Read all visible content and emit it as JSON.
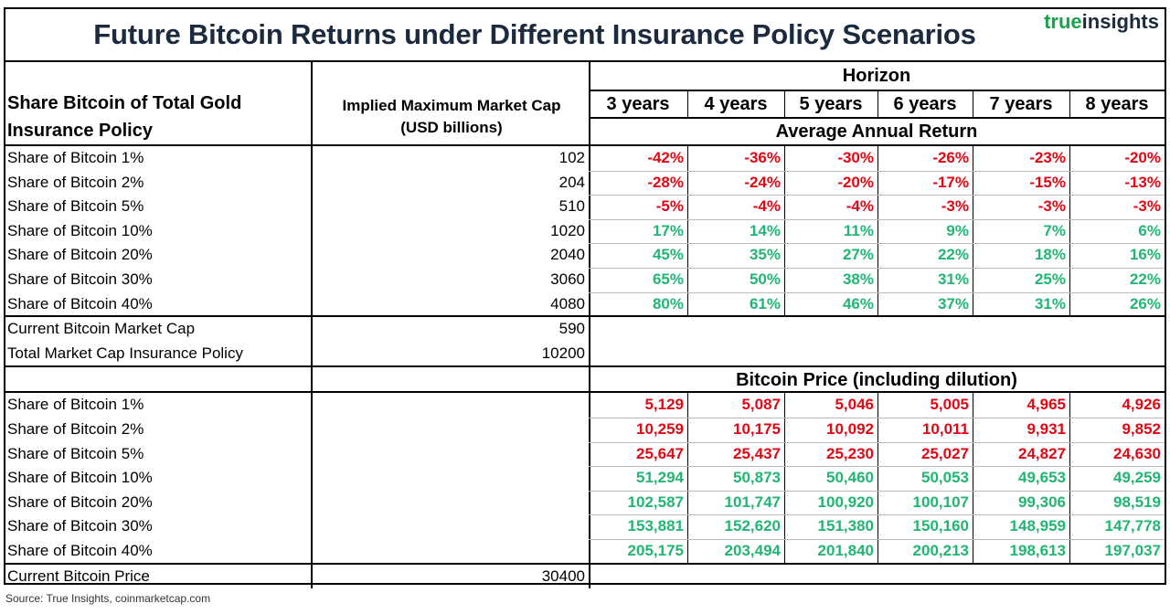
{
  "title": "Future Bitcoin Returns under Different Insurance Policy Scenarios",
  "logo": {
    "part1": "true",
    "part2": "insights"
  },
  "headers": {
    "col1": "Share Bitcoin of Total Gold Insurance Policy",
    "col2_line1": "Implied Maximum Market Cap",
    "col2_line2": "(USD billions)",
    "horizon": "Horizon",
    "avg_return": "Average Annual Return",
    "price_section": "Bitcoin Price (including dilution)"
  },
  "years": [
    "3 years",
    "4 years",
    "5 years",
    "6 years",
    "7 years",
    "8 years"
  ],
  "returns_rows": [
    {
      "label": "Share of Bitcoin 1%",
      "cap": "102",
      "values": [
        "-42%",
        "-36%",
        "-30%",
        "-26%",
        "-23%",
        "-20%"
      ]
    },
    {
      "label": "Share of Bitcoin 2%",
      "cap": "204",
      "values": [
        "-28%",
        "-24%",
        "-20%",
        "-17%",
        "-15%",
        "-13%"
      ]
    },
    {
      "label": "Share of Bitcoin 5%",
      "cap": "510",
      "values": [
        "-5%",
        "-4%",
        "-4%",
        "-3%",
        "-3%",
        "-3%"
      ]
    },
    {
      "label": "Share of Bitcoin 10%",
      "cap": "1020",
      "values": [
        "17%",
        "14%",
        "11%",
        "9%",
        "7%",
        "6%"
      ]
    },
    {
      "label": "Share of Bitcoin 20%",
      "cap": "2040",
      "values": [
        "45%",
        "35%",
        "27%",
        "22%",
        "18%",
        "16%"
      ]
    },
    {
      "label": "Share of Bitcoin 30%",
      "cap": "3060",
      "values": [
        "65%",
        "50%",
        "38%",
        "31%",
        "25%",
        "22%"
      ]
    },
    {
      "label": "Share of Bitcoin 40%",
      "cap": "4080",
      "values": [
        "80%",
        "61%",
        "46%",
        "37%",
        "31%",
        "26%"
      ]
    }
  ],
  "summary_rows": [
    {
      "label": "Current Bitcoin Market Cap",
      "value": "590"
    },
    {
      "label": "Total Market Cap Insurance Policy",
      "value": "10200"
    }
  ],
  "price_rows": [
    {
      "label": "Share of Bitcoin 1%",
      "values": [
        "5,129",
        "5,087",
        "5,046",
        "5,005",
        "4,965",
        "4,926"
      ]
    },
    {
      "label": "Share of Bitcoin 2%",
      "values": [
        "10,259",
        "10,175",
        "10,092",
        "10,011",
        "9,931",
        "9,852"
      ]
    },
    {
      "label": "Share of Bitcoin 5%",
      "values": [
        "25,647",
        "25,437",
        "25,230",
        "25,027",
        "24,827",
        "24,630"
      ]
    },
    {
      "label": "Share of Bitcoin 10%",
      "values": [
        "51,294",
        "50,873",
        "50,460",
        "50,053",
        "49,653",
        "49,259"
      ]
    },
    {
      "label": "Share of Bitcoin 20%",
      "values": [
        "102,587",
        "101,747",
        "100,920",
        "100,107",
        "99,306",
        "98,519"
      ]
    },
    {
      "label": "Share of Bitcoin 30%",
      "values": [
        "153,881",
        "152,620",
        "151,380",
        "150,160",
        "148,959",
        "147,778"
      ]
    },
    {
      "label": "Share of Bitcoin 40%",
      "values": [
        "205,175",
        "203,494",
        "201,840",
        "200,213",
        "198,613",
        "197,037"
      ]
    }
  ],
  "current_price": {
    "label": "Current Bitcoin Price",
    "value": "30400"
  },
  "colors": {
    "negative": "#e30613",
    "positive": "#22b573",
    "title": "#1b2a3d",
    "logo_green": "#17a34a"
  },
  "source": "Source: True Insights, coinmarketcap.com"
}
